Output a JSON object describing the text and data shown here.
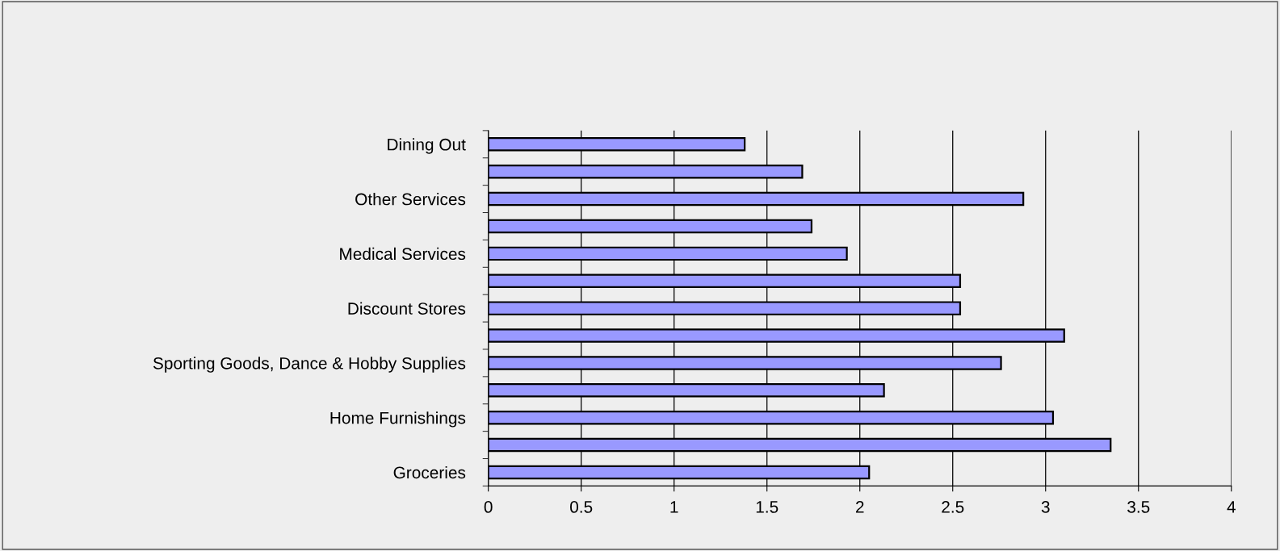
{
  "chart_data": {
    "type": "bar",
    "orientation": "horizontal",
    "categories": [
      "Dining Out",
      null,
      "Other Services",
      null,
      "Medical Services",
      null,
      "Discount Stores",
      null,
      "Sporting Goods, Dance & Hobby Supplies",
      null,
      "Home Furnishings",
      null,
      "Groceries"
    ],
    "values": [
      1.38,
      1.69,
      2.88,
      1.74,
      1.93,
      2.54,
      2.54,
      3.1,
      2.76,
      2.13,
      3.04,
      3.35,
      2.05
    ],
    "color": "#9999ff",
    "xlim": [
      0,
      4
    ],
    "xticks": [
      0,
      0.5,
      1,
      1.5,
      2,
      2.5,
      3,
      3.5,
      4
    ],
    "grid": "x",
    "legend": false
  }
}
